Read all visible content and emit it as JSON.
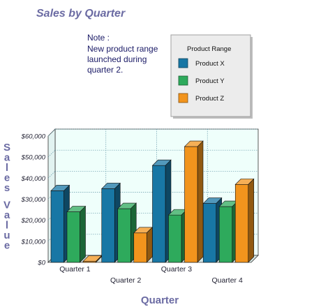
{
  "chart_data": {
    "type": "bar",
    "title": "Sales by Quarter",
    "xlabel": "Quarter",
    "ylabel": "Sales Value",
    "categories": [
      "Quarter 1",
      "Quarter 2",
      "Quarter 3",
      "Quarter 4"
    ],
    "series": [
      {
        "name": "Product X",
        "values": [
          34000,
          35000,
          46000,
          28000
        ],
        "color": "#1877a5"
      },
      {
        "name": "Product Y",
        "values": [
          24000,
          25500,
          22500,
          26500
        ],
        "color": "#2eaa5c"
      },
      {
        "name": "Product Z",
        "values": [
          500,
          14000,
          55000,
          37000
        ],
        "color": "#f2941d"
      }
    ],
    "ylim": [
      0,
      60000
    ],
    "y_ticks": [
      "$0",
      "$10,000",
      "$20,000",
      "$30,000",
      "$40,000",
      "$50,000",
      "$60,000"
    ],
    "grid": true,
    "legend": {
      "title": "Product Range",
      "position": "top-right"
    },
    "annotation": {
      "title": "Note :",
      "lines": [
        "New product range",
        "launched during",
        "quarter 2."
      ]
    }
  },
  "colors": {
    "title": "#6b6ba3",
    "axis_label": "#6b6ba3",
    "plot_background": "#effffb",
    "grid": "#6699aa",
    "legend_background": "#ececec"
  }
}
